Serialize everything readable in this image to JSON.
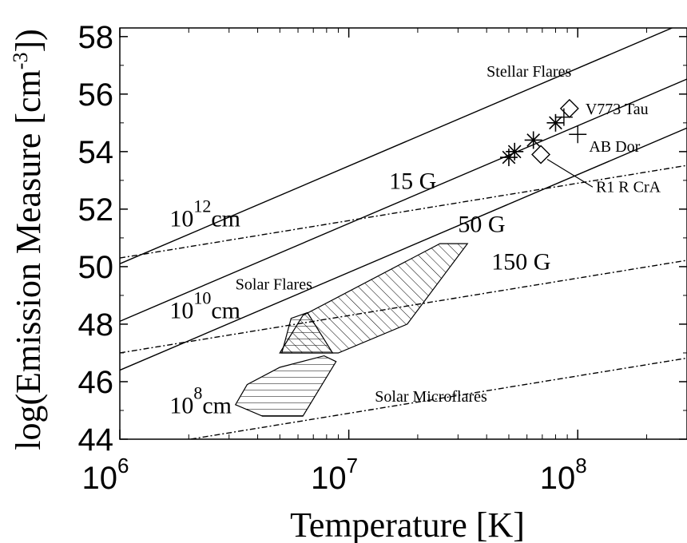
{
  "chart_data": {
    "type": "scatter",
    "xlabel": "Temperature  [K]",
    "ylabel_main": "log(Emission Measure  [cm",
    "ylabel_exp": "-3",
    "ylabel_tail": "])",
    "x_scale": "log",
    "xlim": [
      1000000,
      300000000
    ],
    "ylim": [
      44,
      58.3
    ],
    "x_ticks": [
      {
        "value": 1000000,
        "base": "10",
        "exp": "6"
      },
      {
        "value": 10000000,
        "base": "10",
        "exp": "7"
      },
      {
        "value": 100000000,
        "base": "10",
        "exp": "8"
      }
    ],
    "y_ticks": [
      {
        "value": 44,
        "label": "44"
      },
      {
        "value": 46,
        "label": "46"
      },
      {
        "value": 48,
        "label": "48"
      },
      {
        "value": 50,
        "label": "50"
      },
      {
        "value": 52,
        "label": "52"
      },
      {
        "value": 54,
        "label": "54"
      },
      {
        "value": 56,
        "label": "56"
      },
      {
        "value": 58,
        "label": "58"
      }
    ],
    "field_lines": [
      {
        "label": "15 G",
        "slope": 3.4,
        "intercept": 29.7,
        "label_x": 15000000,
        "label_y": 52.7
      },
      {
        "label": "50 G",
        "slope": 3.4,
        "intercept": 27.7,
        "label_x": 30000000,
        "label_y": 51.2
      },
      {
        "label": "150 G",
        "slope": 3.4,
        "intercept": 26.0,
        "label_x": 42000000,
        "label_y": 49.9
      }
    ],
    "length_lines": [
      {
        "base": "10",
        "exp": "12",
        "unit": "cm",
        "slope": 1.3,
        "intercept": 42.5,
        "label_x": 1650000,
        "label_y": 51.4
      },
      {
        "base": "10",
        "exp": "10",
        "unit": "cm",
        "slope": 1.3,
        "intercept": 39.2,
        "label_x": 1650000,
        "label_y": 48.2
      },
      {
        "base": "10",
        "exp": "8",
        "unit": "cm",
        "slope": 1.3,
        "intercept": 35.8,
        "label_x": 1650000,
        "label_y": 44.9
      }
    ],
    "regions": [
      {
        "name": "Solar Flares",
        "hatch": "diagonal",
        "polygon": [
          [
            5000000,
            47.0
          ],
          [
            6300000,
            48.3
          ],
          [
            25000000,
            50.8
          ],
          [
            33000000,
            50.8
          ],
          [
            18000000,
            48.0
          ],
          [
            9000000,
            47.0
          ]
        ],
        "label_x": 3200000,
        "label_y": 49.2
      },
      {
        "name": "",
        "hatch": "horizontal",
        "polygon": [
          [
            5100000,
            47.0
          ],
          [
            5600000,
            48.2
          ],
          [
            6600000,
            48.4
          ],
          [
            8500000,
            47.0
          ]
        ]
      },
      {
        "name": "Solar Microflares",
        "hatch": "horizontal",
        "polygon": [
          [
            3200000,
            45.2
          ],
          [
            3600000,
            45.9
          ],
          [
            5000000,
            46.5
          ],
          [
            7800000,
            46.9
          ],
          [
            8800000,
            46.7
          ],
          [
            6300000,
            44.8
          ],
          [
            4200000,
            44.8
          ]
        ],
        "label_x": 13000000,
        "label_y": 45.3
      }
    ],
    "stars": [
      {
        "name": "Stellar Flares",
        "marker": "asterisk",
        "points": [
          [
            50000000,
            53.8
          ],
          [
            53000000,
            54.0
          ],
          [
            64000000,
            54.4
          ],
          [
            80000000,
            55.0
          ]
        ],
        "label_x": 40000000,
        "label_y": 56.6
      },
      {
        "name": "V773 Tau",
        "marker": "diamond",
        "points": [
          [
            92000000,
            55.5
          ]
        ],
        "label_x": 108000000,
        "label_y": 55.3
      },
      {
        "name": "AB Dor",
        "marker": "plus",
        "points": [
          [
            100000000,
            54.6
          ],
          [
            87000000,
            55.2
          ]
        ],
        "label_x": 112000000,
        "label_y": 54.0
      },
      {
        "name": "R1 R CrA",
        "marker": "diamond",
        "points": [
          [
            69000000,
            53.9
          ]
        ],
        "label_x": 120000000,
        "label_y": 52.6
      }
    ],
    "grid": false,
    "legend": "none"
  }
}
